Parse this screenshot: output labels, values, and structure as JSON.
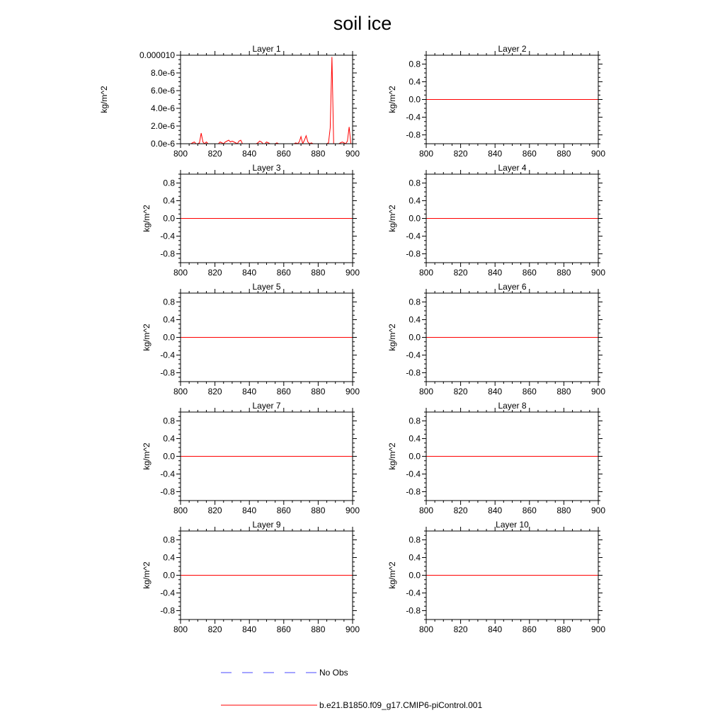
{
  "figure": {
    "title": "soil ice"
  },
  "legend": [
    {
      "label": "No Obs",
      "color": "#4a4aff",
      "style": "dashed"
    },
    {
      "label": "b.e21.B1850.f09_g17.CMIP6-piControl.001",
      "color": "#ff0000",
      "style": "solid"
    }
  ],
  "chart_data": [
    {
      "type": "line",
      "title": "Layer 1",
      "xlabel": "",
      "ylabel": "kg/m^2",
      "xlim": [
        800,
        900
      ],
      "ylim": [
        0,
        1e-05
      ],
      "xticks": [
        800,
        820,
        840,
        860,
        880,
        900
      ],
      "yticks": [
        0,
        2e-06,
        4e-06,
        6e-06,
        8e-06,
        1e-05
      ],
      "ytick_labels": [
        "0.0e-6",
        "2.0e-6",
        "4.0e-6",
        "6.0e-6",
        "8.0e-6",
        "0.000010"
      ],
      "series": [
        {
          "name": "b.e21.B1850.f09_g17.CMIP6-piControl.001",
          "color": "#ff0000",
          "x": [
            800,
            801,
            802,
            803,
            804,
            805,
            806,
            807,
            808,
            809,
            810,
            811,
            812,
            813,
            814,
            815,
            816,
            817,
            818,
            819,
            820,
            821,
            822,
            823,
            824,
            825,
            826,
            827,
            828,
            829,
            830,
            831,
            832,
            833,
            834,
            835,
            836,
            837,
            838,
            839,
            840,
            841,
            842,
            843,
            844,
            845,
            846,
            847,
            848,
            849,
            850,
            851,
            852,
            853,
            854,
            855,
            856,
            857,
            858,
            859,
            860,
            861,
            862,
            863,
            864,
            865,
            866,
            867,
            868,
            869,
            870,
            871,
            872,
            873,
            874,
            875,
            876,
            877,
            878,
            879,
            880,
            881,
            882,
            883,
            884,
            885,
            886,
            887,
            888,
            889,
            890,
            891,
            892,
            893,
            894,
            895,
            896,
            897,
            898,
            899,
            900
          ],
          "y": [
            0,
            0,
            0,
            0,
            0,
            0,
            0,
            1e-07,
            2e-07,
            0,
            0,
            1e-07,
            1.2e-06,
            2e-07,
            0,
            2e-07,
            0,
            0,
            0,
            0,
            0,
            0,
            0,
            2e-07,
            1e-07,
            0,
            2e-07,
            3e-07,
            4e-07,
            2e-07,
            3e-07,
            2e-07,
            1e-07,
            0,
            3e-07,
            4e-07,
            0,
            0,
            0,
            0,
            0,
            0,
            0,
            0,
            0,
            1e-07,
            3e-07,
            2e-07,
            0,
            0,
            2e-07,
            1e-07,
            0,
            0,
            0,
            0,
            1e-07,
            0,
            0,
            0,
            0,
            0,
            0,
            0,
            0,
            0,
            0,
            1e-07,
            0,
            2e-07,
            8e-07,
            0,
            4e-07,
            9e-07,
            2e-07,
            0,
            1e-07,
            0,
            0,
            0,
            0,
            0,
            0,
            0,
            0,
            0,
            1e-07,
            1.8e-06,
            9.8e-06,
            0,
            0,
            0,
            0,
            1e-07,
            2e-07,
            1e-07,
            0,
            3e-07,
            1.9e-06,
            0,
            0
          ]
        }
      ]
    },
    {
      "type": "line",
      "title": "Layer 2",
      "xlabel": "",
      "ylabel": "kg/m^2",
      "xlim": [
        800,
        900
      ],
      "ylim": [
        -1,
        1
      ],
      "xticks": [
        800,
        820,
        840,
        860,
        880,
        900
      ],
      "yticks": [
        -0.8,
        -0.4,
        0.0,
        0.4,
        0.8
      ],
      "ytick_labels": [
        "-0.8",
        "-0.4",
        "0.0",
        "0.4",
        "0.8"
      ],
      "series": [
        {
          "name": "b.e21.B1850.f09_g17.CMIP6-piControl.001",
          "color": "#ff0000",
          "x": [
            800,
            900
          ],
          "y": [
            0,
            0
          ]
        }
      ]
    },
    {
      "type": "line",
      "title": "Layer 3",
      "xlabel": "",
      "ylabel": "kg/m^2",
      "xlim": [
        800,
        900
      ],
      "ylim": [
        -1,
        1
      ],
      "xticks": [
        800,
        820,
        840,
        860,
        880,
        900
      ],
      "yticks": [
        -0.8,
        -0.4,
        0.0,
        0.4,
        0.8
      ],
      "ytick_labels": [
        "-0.8",
        "-0.4",
        "0.0",
        "0.4",
        "0.8"
      ],
      "series": [
        {
          "name": "b.e21.B1850.f09_g17.CMIP6-piControl.001",
          "color": "#ff0000",
          "x": [
            800,
            900
          ],
          "y": [
            0,
            0
          ]
        }
      ]
    },
    {
      "type": "line",
      "title": "Layer 4",
      "xlabel": "",
      "ylabel": "kg/m^2",
      "xlim": [
        800,
        900
      ],
      "ylim": [
        -1,
        1
      ],
      "xticks": [
        800,
        820,
        840,
        860,
        880,
        900
      ],
      "yticks": [
        -0.8,
        -0.4,
        0.0,
        0.4,
        0.8
      ],
      "ytick_labels": [
        "-0.8",
        "-0.4",
        "0.0",
        "0.4",
        "0.8"
      ],
      "series": [
        {
          "name": "b.e21.B1850.f09_g17.CMIP6-piControl.001",
          "color": "#ff0000",
          "x": [
            800,
            900
          ],
          "y": [
            0,
            0
          ]
        }
      ]
    },
    {
      "type": "line",
      "title": "Layer 5",
      "xlabel": "",
      "ylabel": "kg/m^2",
      "xlim": [
        800,
        900
      ],
      "ylim": [
        -1,
        1
      ],
      "xticks": [
        800,
        820,
        840,
        860,
        880,
        900
      ],
      "yticks": [
        -0.8,
        -0.4,
        0.0,
        0.4,
        0.8
      ],
      "ytick_labels": [
        "-0.8",
        "-0.4",
        "0.0",
        "0.4",
        "0.8"
      ],
      "series": [
        {
          "name": "b.e21.B1850.f09_g17.CMIP6-piControl.001",
          "color": "#ff0000",
          "x": [
            800,
            900
          ],
          "y": [
            0,
            0
          ]
        }
      ]
    },
    {
      "type": "line",
      "title": "Layer 6",
      "xlabel": "",
      "ylabel": "kg/m^2",
      "xlim": [
        800,
        900
      ],
      "ylim": [
        -1,
        1
      ],
      "xticks": [
        800,
        820,
        840,
        860,
        880,
        900
      ],
      "yticks": [
        -0.8,
        -0.4,
        0.0,
        0.4,
        0.8
      ],
      "ytick_labels": [
        "-0.8",
        "-0.4",
        "0.0",
        "0.4",
        "0.8"
      ],
      "series": [
        {
          "name": "b.e21.B1850.f09_g17.CMIP6-piControl.001",
          "color": "#ff0000",
          "x": [
            800,
            900
          ],
          "y": [
            0,
            0
          ]
        }
      ]
    },
    {
      "type": "line",
      "title": "Layer 7",
      "xlabel": "",
      "ylabel": "kg/m^2",
      "xlim": [
        800,
        900
      ],
      "ylim": [
        -1,
        1
      ],
      "xticks": [
        800,
        820,
        840,
        860,
        880,
        900
      ],
      "yticks": [
        -0.8,
        -0.4,
        0.0,
        0.4,
        0.8
      ],
      "ytick_labels": [
        "-0.8",
        "-0.4",
        "0.0",
        "0.4",
        "0.8"
      ],
      "series": [
        {
          "name": "b.e21.B1850.f09_g17.CMIP6-piControl.001",
          "color": "#ff0000",
          "x": [
            800,
            900
          ],
          "y": [
            0,
            0
          ]
        }
      ]
    },
    {
      "type": "line",
      "title": "Layer 8",
      "xlabel": "",
      "ylabel": "kg/m^2",
      "xlim": [
        800,
        900
      ],
      "ylim": [
        -1,
        1
      ],
      "xticks": [
        800,
        820,
        840,
        860,
        880,
        900
      ],
      "yticks": [
        -0.8,
        -0.4,
        0.0,
        0.4,
        0.8
      ],
      "ytick_labels": [
        "-0.8",
        "-0.4",
        "0.0",
        "0.4",
        "0.8"
      ],
      "series": [
        {
          "name": "b.e21.B1850.f09_g17.CMIP6-piControl.001",
          "color": "#ff0000",
          "x": [
            800,
            900
          ],
          "y": [
            0,
            0
          ]
        }
      ]
    },
    {
      "type": "line",
      "title": "Layer 9",
      "xlabel": "",
      "ylabel": "kg/m^2",
      "xlim": [
        800,
        900
      ],
      "ylim": [
        -1,
        1
      ],
      "xticks": [
        800,
        820,
        840,
        860,
        880,
        900
      ],
      "yticks": [
        -0.8,
        -0.4,
        0.0,
        0.4,
        0.8
      ],
      "ytick_labels": [
        "-0.8",
        "-0.4",
        "0.0",
        "0.4",
        "0.8"
      ],
      "series": [
        {
          "name": "b.e21.B1850.f09_g17.CMIP6-piControl.001",
          "color": "#ff0000",
          "x": [
            800,
            900
          ],
          "y": [
            0,
            0
          ]
        }
      ]
    },
    {
      "type": "line",
      "title": "Layer 10",
      "xlabel": "",
      "ylabel": "kg/m^2",
      "xlim": [
        800,
        900
      ],
      "ylim": [
        -1,
        1
      ],
      "xticks": [
        800,
        820,
        840,
        860,
        880,
        900
      ],
      "yticks": [
        -0.8,
        -0.4,
        0.0,
        0.4,
        0.8
      ],
      "ytick_labels": [
        "-0.8",
        "-0.4",
        "0.0",
        "0.4",
        "0.8"
      ],
      "series": [
        {
          "name": "b.e21.B1850.f09_g17.CMIP6-piControl.001",
          "color": "#ff0000",
          "x": [
            800,
            900
          ],
          "y": [
            0,
            0
          ]
        }
      ]
    }
  ]
}
